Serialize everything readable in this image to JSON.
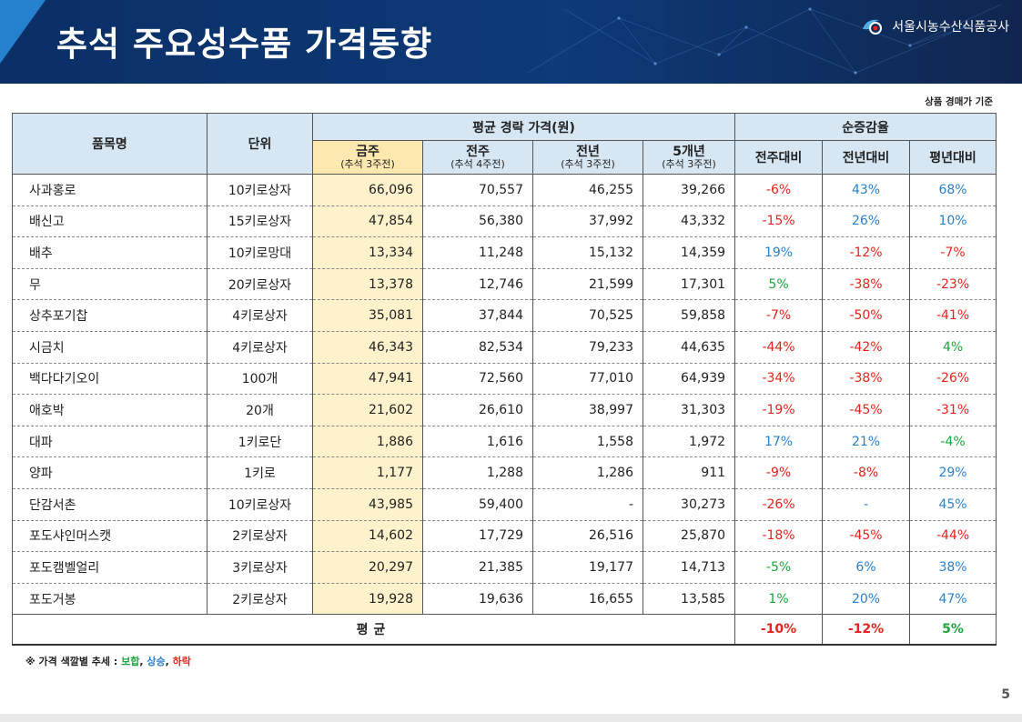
{
  "header": {
    "title": "추석 주요성수품 가격동향",
    "org": "서울시농수산식품공사"
  },
  "note_top": "상품 경매가 기준",
  "table": {
    "col_item": "품목명",
    "col_unit": "단위",
    "group_price": "평균 경락 가격(원)",
    "group_rate": "순증감율",
    "price_cols": [
      {
        "label": "금주",
        "sub": "(추석 3주전)"
      },
      {
        "label": "전주",
        "sub": "(추석 4주전)"
      },
      {
        "label": "전년",
        "sub": "(추석 3주전)"
      },
      {
        "label": "5개년",
        "sub": "(추석 3주전)"
      }
    ],
    "rate_cols": [
      "전주대비",
      "전년대비",
      "평년대비"
    ],
    "rows": [
      {
        "name": "사과홍로",
        "unit": "10키로상자",
        "cur": "66,096",
        "prev_week": "70,557",
        "prev_year": "46,255",
        "five_year": "39,266",
        "r1": "-6%",
        "r2": "43%",
        "r3": "68%"
      },
      {
        "name": "배신고",
        "unit": "15키로상자",
        "cur": "47,854",
        "prev_week": "56,380",
        "prev_year": "37,992",
        "five_year": "43,332",
        "r1": "-15%",
        "r2": "26%",
        "r3": "10%"
      },
      {
        "name": "배추",
        "unit": "10키로망대",
        "cur": "13,334",
        "prev_week": "11,248",
        "prev_year": "15,132",
        "five_year": "14,359",
        "r1": "19%",
        "r2": "-12%",
        "r3": "-7%"
      },
      {
        "name": "무",
        "unit": "20키로상자",
        "cur": "13,378",
        "prev_week": "12,746",
        "prev_year": "21,599",
        "five_year": "17,301",
        "r1": "5%",
        "r2": "-38%",
        "r3": "-23%"
      },
      {
        "name": "상추포기찹",
        "unit": "4키로상자",
        "cur": "35,081",
        "prev_week": "37,844",
        "prev_year": "70,525",
        "five_year": "59,858",
        "r1": "-7%",
        "r2": "-50%",
        "r3": "-41%"
      },
      {
        "name": "시금치",
        "unit": "4키로상자",
        "cur": "46,343",
        "prev_week": "82,534",
        "prev_year": "79,233",
        "five_year": "44,635",
        "r1": "-44%",
        "r2": "-42%",
        "r3": "4%"
      },
      {
        "name": "백다다기오이",
        "unit": "100개",
        "cur": "47,941",
        "prev_week": "72,560",
        "prev_year": "77,010",
        "five_year": "64,939",
        "r1": "-34%",
        "r2": "-38%",
        "r3": "-26%"
      },
      {
        "name": "애호박",
        "unit": "20개",
        "cur": "21,602",
        "prev_week": "26,610",
        "prev_year": "38,997",
        "five_year": "31,303",
        "r1": "-19%",
        "r2": "-45%",
        "r3": "-31%"
      },
      {
        "name": "대파",
        "unit": "1키로단",
        "cur": "1,886",
        "prev_week": "1,616",
        "prev_year": "1,558",
        "five_year": "1,972",
        "r1": "17%",
        "r2": "21%",
        "r3": "-4%"
      },
      {
        "name": "양파",
        "unit": "1키로",
        "cur": "1,177",
        "prev_week": "1,288",
        "prev_year": "1,286",
        "five_year": "911",
        "r1": "-9%",
        "r2": "-8%",
        "r3": "29%"
      },
      {
        "name": "단감서촌",
        "unit": "10키로상자",
        "cur": "43,985",
        "prev_week": "59,400",
        "prev_year": "-",
        "five_year": "30,273",
        "r1": "-26%",
        "r2": "-",
        "r3": "45%"
      },
      {
        "name": "포도샤인머스캣",
        "unit": "2키로상자",
        "cur": "14,602",
        "prev_week": "17,729",
        "prev_year": "26,516",
        "five_year": "25,870",
        "r1": "-18%",
        "r2": "-45%",
        "r3": "-44%"
      },
      {
        "name": "포도캠벨얼리",
        "unit": "3키로상자",
        "cur": "20,297",
        "prev_week": "21,385",
        "prev_year": "19,177",
        "five_year": "14,713",
        "r1": "-5%",
        "r2": "6%",
        "r3": "38%"
      },
      {
        "name": "포도거봉",
        "unit": "2키로상자",
        "cur": "19,928",
        "prev_week": "19,636",
        "prev_year": "16,655",
        "five_year": "13,585",
        "r1": "1%",
        "r2": "20%",
        "r3": "47%"
      }
    ],
    "average": {
      "label": "평균",
      "r1": "-10%",
      "r2": "-12%",
      "r3": "5%"
    }
  },
  "footnote": {
    "prefix": "※ 가격 색깔별 추세 : ",
    "flat": "보합",
    "up": "상승",
    "down": "하락",
    "sep": ", "
  },
  "page_number": "5",
  "colors": {
    "flat": "#1fa33f",
    "up": "#2a7fc9",
    "down": "#e3241f",
    "header_bg": "#0d3a78"
  }
}
